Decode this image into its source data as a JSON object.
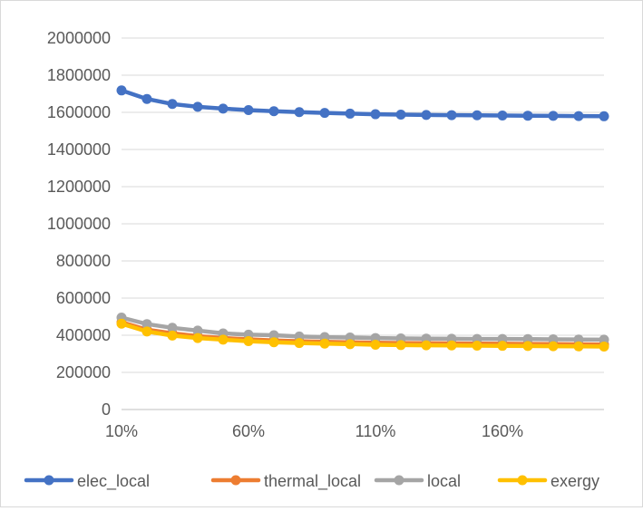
{
  "chart_data": {
    "type": "line",
    "title": "",
    "xlabel": "",
    "ylabel": "",
    "x": [
      "10%",
      "20%",
      "30%",
      "40%",
      "50%",
      "60%",
      "70%",
      "80%",
      "90%",
      "100%",
      "110%",
      "120%",
      "130%",
      "140%",
      "150%",
      "160%",
      "170%",
      "180%",
      "190%",
      "200%"
    ],
    "x_tick_labels": [
      "10%",
      "60%",
      "110%",
      "160%"
    ],
    "y_ticks": [
      0,
      200000,
      400000,
      600000,
      800000,
      1000000,
      1200000,
      1400000,
      1600000,
      1800000,
      2000000
    ],
    "ylim": [
      0,
      2000000
    ],
    "grid": true,
    "legend_position": "bottom",
    "series": [
      {
        "name": "elec_local",
        "color": "#4472c4",
        "values": [
          1718000,
          1672000,
          1645000,
          1630000,
          1620000,
          1612000,
          1606000,
          1601000,
          1597000,
          1593000,
          1590000,
          1588000,
          1586000,
          1585000,
          1584000,
          1583000,
          1582000,
          1581000,
          1580000,
          1579000
        ]
      },
      {
        "name": "thermal_local",
        "color": "#ed7d31",
        "values": [
          470000,
          430000,
          410000,
          395000,
          385000,
          378000,
          372000,
          368000,
          365000,
          362000,
          360000,
          358000,
          357000,
          356000,
          355000,
          354000,
          353000,
          352000,
          351000,
          350000
        ]
      },
      {
        "name": "local",
        "color": "#a5a5a5",
        "values": [
          495000,
          460000,
          440000,
          425000,
          410000,
          403000,
          400000,
          393000,
          390000,
          388000,
          385000,
          383000,
          382000,
          381000,
          380000,
          380000,
          379000,
          378000,
          377000,
          376000
        ]
      },
      {
        "name": "exergy",
        "color": "#ffc000",
        "values": [
          462000,
          420000,
          398000,
          385000,
          376000,
          368000,
          362000,
          358000,
          355000,
          352000,
          349000,
          347000,
          346000,
          345000,
          344000,
          343000,
          342000,
          341000,
          340000,
          339000
        ]
      }
    ]
  }
}
